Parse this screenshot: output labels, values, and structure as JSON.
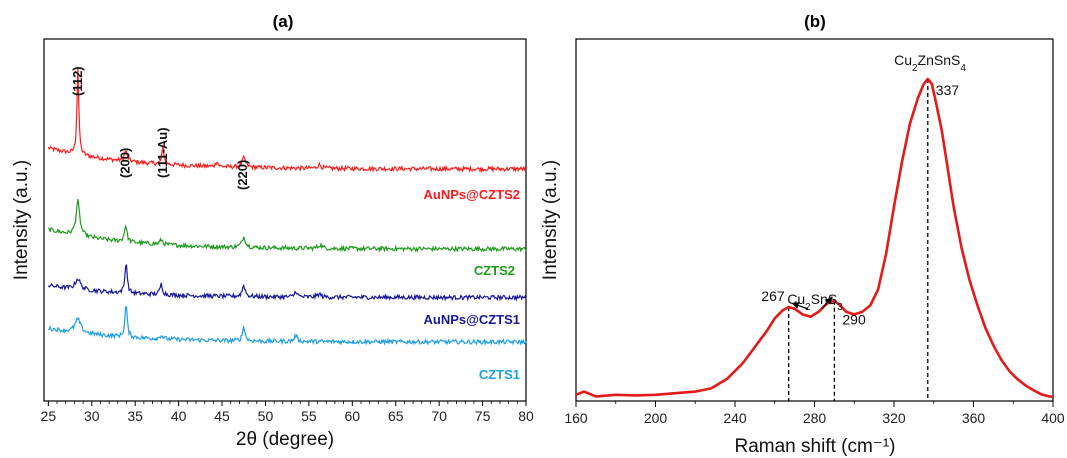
{
  "chart_data": [
    {
      "panel": "(a)",
      "type": "line",
      "xlabel": "2θ (degree)",
      "ylabel": "Intensity (a.u.)",
      "xlim": [
        24.5,
        80
      ],
      "x_ticks": [
        25,
        30,
        35,
        40,
        45,
        50,
        55,
        60,
        65,
        70,
        75,
        80
      ],
      "grid": false,
      "y_ticks_shown": false,
      "peak_labels": [
        {
          "label": "(112)",
          "x": 28.4
        },
        {
          "label": "(200)",
          "x": 33.9
        },
        {
          "label": "(111-Au)",
          "x": 38.2
        },
        {
          "label": "(220)",
          "x": 47.4
        }
      ],
      "series": [
        {
          "name": "AuNPs@CZTS2",
          "color": "#ff1c1c",
          "baseline": [
            1.0,
            0.3
          ],
          "peaks": [
            {
              "x": 28.4,
              "h": 2.9,
              "w": 0.25
            },
            {
              "x": 33.9,
              "h": 0.35,
              "w": 0.4
            },
            {
              "x": 38.2,
              "h": 0.55,
              "w": 0.3
            },
            {
              "x": 44.4,
              "h": 0.18,
              "w": 0.3
            },
            {
              "x": 47.5,
              "h": 0.3,
              "w": 0.5
            },
            {
              "x": 56.2,
              "h": 0.12,
              "w": 0.5
            }
          ]
        },
        {
          "name": "CZTS2",
          "color": "#1e9b1e",
          "baseline": [
            0.95,
            0.3
          ],
          "peaks": [
            {
              "x": 28.4,
              "h": 1.15,
              "w": 0.5
            },
            {
              "x": 33.9,
              "h": 0.55,
              "w": 0.35
            },
            {
              "x": 38.0,
              "h": 0.15,
              "w": 0.4
            },
            {
              "x": 47.5,
              "h": 0.35,
              "w": 0.5
            },
            {
              "x": 56.3,
              "h": 0.12,
              "w": 0.5
            }
          ]
        },
        {
          "name": "AuNPs@CZTS1",
          "color": "#16179a",
          "baseline": [
            0.55,
            0.15
          ],
          "peaks": [
            {
              "x": 28.4,
              "h": 0.35,
              "w": 0.7
            },
            {
              "x": 33.95,
              "h": 1.05,
              "w": 0.3
            },
            {
              "x": 38.0,
              "h": 0.35,
              "w": 0.35
            },
            {
              "x": 47.5,
              "h": 0.38,
              "w": 0.4
            },
            {
              "x": 53.5,
              "h": 0.2,
              "w": 0.35
            },
            {
              "x": 56.2,
              "h": 0.1,
              "w": 0.5
            }
          ]
        },
        {
          "name": "CZTS1",
          "color": "#1f9ee8",
          "baseline": [
            0.55,
            0.1
          ],
          "peaks": [
            {
              "x": 28.4,
              "h": 0.45,
              "w": 0.8
            },
            {
              "x": 33.95,
              "h": 1.1,
              "w": 0.3
            },
            {
              "x": 38.0,
              "h": 0.12,
              "w": 0.4
            },
            {
              "x": 47.5,
              "h": 0.48,
              "w": 0.35
            },
            {
              "x": 53.5,
              "h": 0.2,
              "w": 0.4
            }
          ]
        }
      ]
    },
    {
      "panel": "(b)",
      "type": "line",
      "xlabel": "Raman shift (cm⁻¹)",
      "ylabel": "Intensity (a.u.)",
      "xlim": [
        160,
        400
      ],
      "x_ticks": [
        160,
        200,
        240,
        280,
        320,
        360,
        400
      ],
      "grid": false,
      "y_ticks_shown": false,
      "series": [
        {
          "name": "",
          "color": "#e41a1a",
          "points": [
            [
              160,
              0.01
            ],
            [
              164,
              0.02
            ],
            [
              170,
              0.005
            ],
            [
              180,
              0.01
            ],
            [
              190,
              0.008
            ],
            [
              200,
              0.01
            ],
            [
              210,
              0.015
            ],
            [
              220,
              0.02
            ],
            [
              228,
              0.03
            ],
            [
              236,
              0.06
            ],
            [
              244,
              0.11
            ],
            [
              250,
              0.16
            ],
            [
              256,
              0.21
            ],
            [
              260,
              0.25
            ],
            [
              264,
              0.275
            ],
            [
              267,
              0.285
            ],
            [
              270,
              0.28
            ],
            [
              274,
              0.262
            ],
            [
              278,
              0.255
            ],
            [
              282,
              0.27
            ],
            [
              286,
              0.295
            ],
            [
              290,
              0.305
            ],
            [
              293,
              0.29
            ],
            [
              296,
              0.27
            ],
            [
              300,
              0.262
            ],
            [
              304,
              0.27
            ],
            [
              308,
              0.29
            ],
            [
              312,
              0.34
            ],
            [
              316,
              0.45
            ],
            [
              320,
              0.6
            ],
            [
              324,
              0.74
            ],
            [
              328,
              0.86
            ],
            [
              332,
              0.94
            ],
            [
              335,
              0.985
            ],
            [
              337,
              1.0
            ],
            [
              339,
              0.985
            ],
            [
              341,
              0.93
            ],
            [
              344,
              0.84
            ],
            [
              347,
              0.72
            ],
            [
              350,
              0.6
            ],
            [
              354,
              0.47
            ],
            [
              358,
              0.37
            ],
            [
              362,
              0.29
            ],
            [
              366,
              0.22
            ],
            [
              370,
              0.165
            ],
            [
              374,
              0.12
            ],
            [
              378,
              0.085
            ],
            [
              382,
              0.06
            ],
            [
              386,
              0.04
            ],
            [
              390,
              0.025
            ],
            [
              394,
              0.012
            ],
            [
              398,
              0.005
            ],
            [
              400,
              0.004
            ]
          ]
        }
      ],
      "annotations": [
        {
          "type": "peak-marker",
          "x": 267,
          "y": 0.285,
          "label": "267"
        },
        {
          "type": "peak-marker",
          "x": 290,
          "y": 0.305,
          "label": "290"
        },
        {
          "type": "peak-marker",
          "x": 337,
          "y": 1.0,
          "label": "337"
        },
        {
          "type": "phase-label",
          "label_parts": [
            "Cu",
            "2",
            "SnS",
            "3"
          ],
          "points_to": [
            267,
            290
          ]
        },
        {
          "type": "phase-label",
          "label_parts": [
            "Cu",
            "2",
            "ZnSnS",
            "4"
          ],
          "points_to": [
            337
          ]
        }
      ]
    }
  ]
}
